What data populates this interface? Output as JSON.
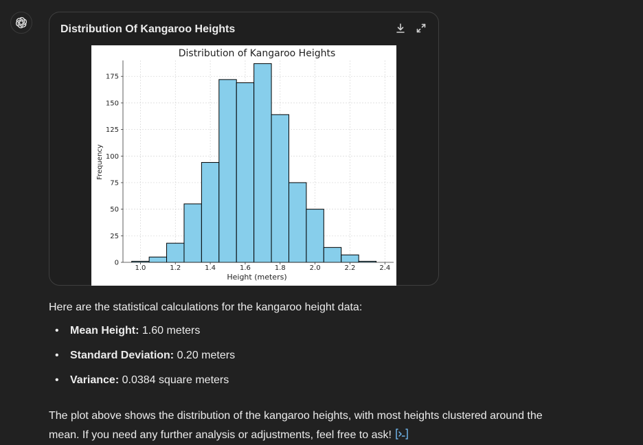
{
  "card": {
    "title": "Distribution Of Kangaroo Heights",
    "icons": [
      "download-icon",
      "expand-icon"
    ]
  },
  "chart_data": {
    "type": "bar",
    "title": "Distribution of Kangaroo Heights",
    "xlabel": "Height (meters)",
    "ylabel": "Frequency",
    "bin_edges": [
      0.95,
      1.05,
      1.15,
      1.25,
      1.35,
      1.45,
      1.55,
      1.65,
      1.75,
      1.85,
      1.95,
      2.05,
      2.15,
      2.25,
      2.35
    ],
    "values": [
      1,
      5,
      18,
      55,
      94,
      172,
      169,
      187,
      139,
      75,
      50,
      14,
      7,
      1
    ],
    "xticks": [
      "1.0",
      "1.2",
      "1.4",
      "1.6",
      "1.8",
      "2.0",
      "2.2",
      "2.4"
    ],
    "xtick_values": [
      1.0,
      1.2,
      1.4,
      1.6,
      1.8,
      2.0,
      2.2,
      2.4
    ],
    "yticks": [
      "0",
      "25",
      "50",
      "75",
      "100",
      "125",
      "150",
      "175"
    ],
    "ytick_values": [
      0,
      25,
      50,
      75,
      100,
      125,
      150,
      175
    ],
    "xlim": [
      0.9,
      2.45
    ],
    "ylim": [
      0,
      190
    ],
    "grid": true,
    "bar_color": "#87ceeb",
    "edge_color": "#000000"
  },
  "message": {
    "intro": "Here are the statistical calculations for the kangaroo height data:",
    "stats": [
      {
        "label": "Mean Height:",
        "value": " 1.60 meters"
      },
      {
        "label": "Standard Deviation:",
        "value": " 0.20 meters"
      },
      {
        "label": "Variance:",
        "value": " 0.0384 square meters"
      }
    ],
    "closing": "The plot above shows the distribution of the kangaroo heights, with most heights clustered around the mean. If you need any further analysis or adjustments, feel free to ask!"
  },
  "colors": {
    "background": "#212121",
    "text": "#ececec",
    "accent": "#6fb3e8"
  }
}
